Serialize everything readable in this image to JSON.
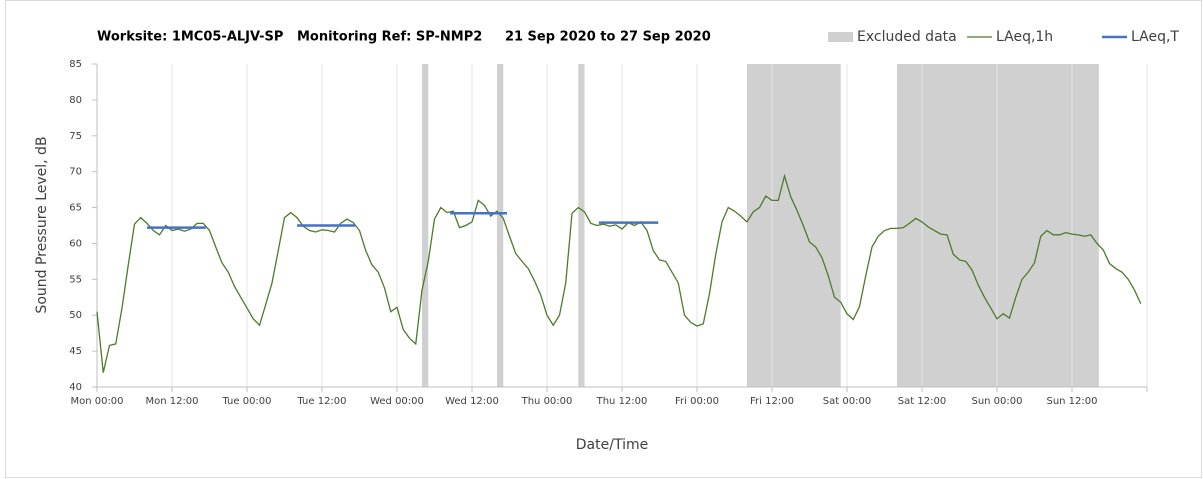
{
  "chart_data": {
    "type": "line",
    "title": "Worksite: 1MC05-ALJV-SP   Monitoring Ref: SP-NMP2     21 Sep 2020 to 27 Sep 2020",
    "xlabel": "Date/Time",
    "ylabel": "Sound Pressure Level, dB",
    "xlim": [
      0,
      168
    ],
    "xticks": [
      {
        "value": 0,
        "label": "Mon 00:00"
      },
      {
        "value": 12,
        "label": "Mon 12:00"
      },
      {
        "value": 24,
        "label": "Tue 00:00"
      },
      {
        "value": 36,
        "label": "Tue 12:00"
      },
      {
        "value": 48,
        "label": "Wed 00:00"
      },
      {
        "value": 60,
        "label": "Wed 12:00"
      },
      {
        "value": 72,
        "label": "Thu 00:00"
      },
      {
        "value": 84,
        "label": "Thu 12:00"
      },
      {
        "value": 96,
        "label": "Fri 00:00"
      },
      {
        "value": 108,
        "label": "Fri 12:00"
      },
      {
        "value": 120,
        "label": "Sat 00:00"
      },
      {
        "value": 132,
        "label": "Sat 12:00"
      },
      {
        "value": 144,
        "label": "Sun 00:00"
      },
      {
        "value": 156,
        "label": "Sun 12:00"
      },
      {
        "value": 168,
        "label": ""
      }
    ],
    "ylim": [
      40,
      85
    ],
    "yticks": [
      40,
      45,
      50,
      55,
      60,
      65,
      70,
      75,
      80,
      85
    ],
    "grid": "x",
    "legend": "top-right",
    "excluded": {
      "name": "Excluded data",
      "color": "#d0d0d0",
      "ranges": [
        [
          52,
          53
        ],
        [
          64,
          65
        ],
        [
          77,
          78
        ],
        [
          104,
          119
        ],
        [
          128,
          160.3
        ]
      ]
    },
    "series": [
      {
        "name": "LAeq,1h",
        "color": "#4f7a2a",
        "values": [
          50.5,
          42,
          45.8,
          46,
          51,
          57,
          62.7,
          63.6,
          62.8,
          61.8,
          61.2,
          62.5,
          61.8,
          62,
          61.7,
          62,
          62.8,
          62.8,
          61.8,
          59.5,
          57.3,
          56,
          54,
          52.5,
          51,
          49.5,
          48.6,
          51.5,
          54.5,
          59,
          63.6,
          64.3,
          63.6,
          62.4,
          61.8,
          61.6,
          61.9,
          61.8,
          61.6,
          62.8,
          63.4,
          62.9,
          61.8,
          59,
          57,
          56,
          53.8,
          50.5,
          51.1,
          48,
          46.8,
          46,
          53.5,
          57.5,
          63.4,
          65,
          64.3,
          64.5,
          62.2,
          62.5,
          63,
          66,
          65.3,
          63.8,
          64.5,
          63.5,
          61,
          58.6,
          57.5,
          56.5,
          54.8,
          52.8,
          50,
          48.6,
          50,
          54.5,
          64.2,
          65,
          64.4,
          62.8,
          62.5,
          62.7,
          62.4,
          62.6,
          62,
          62.9,
          62.5,
          63,
          61.8,
          59,
          57.7,
          57.5,
          56,
          54.5,
          50,
          49,
          48.5,
          48.8,
          53,
          58.5,
          63,
          65,
          64.5,
          63.8,
          63,
          64.4,
          65,
          66.6,
          66,
          66,
          69.4,
          66.5,
          64.6,
          62.5,
          60.2,
          59.5,
          58,
          55.5,
          52.5,
          51.8,
          50.2,
          49.4,
          51.2,
          55.5,
          59.5,
          61,
          61.8,
          62.1,
          62.1,
          62.2,
          62.8,
          63.5,
          63,
          62.3,
          61.8,
          61.3,
          61.2,
          58.5,
          57.7,
          57.5,
          56.3,
          54.2,
          52.5,
          51,
          49.5,
          50.2,
          49.6,
          52.5,
          55,
          56,
          57.3,
          61,
          61.8,
          61.2,
          61.2,
          61.5,
          61.3,
          61.2,
          61,
          61.2,
          60,
          59.1,
          57.2,
          56.5,
          56,
          55,
          53.5,
          51.6
        ]
      },
      {
        "name": "LAeq,T",
        "color": "#4472c4",
        "segments": [
          {
            "x": [
              8,
              17.4
            ],
            "value": 62.2
          },
          {
            "x": [
              32,
              41.3
            ],
            "value": 62.5
          },
          {
            "x": [
              56.5,
              65.6
            ],
            "value": 64.2
          },
          {
            "x": [
              80.3,
              89.8
            ],
            "value": 62.9
          }
        ]
      }
    ]
  }
}
